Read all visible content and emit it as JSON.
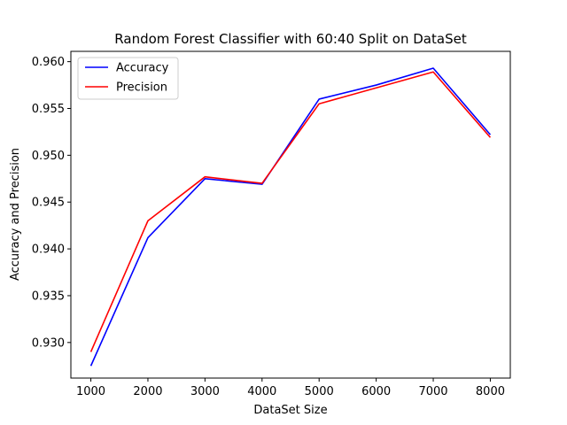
{
  "chart_data": {
    "type": "line",
    "title": "Random Forest Classifier with 60:40 Split on DataSet",
    "xlabel": "DataSet Size",
    "ylabel": "Accuracy and Precision",
    "x": [
      1000,
      2000,
      3000,
      4000,
      5000,
      6000,
      7000,
      8000
    ],
    "xticks": [
      1000,
      2000,
      3000,
      4000,
      5000,
      6000,
      7000,
      8000
    ],
    "yticks": [
      0.93,
      0.935,
      0.94,
      0.945,
      0.95,
      0.955,
      0.96
    ],
    "xtick_labels": [
      "1000",
      "2000",
      "3000",
      "4000",
      "5000",
      "6000",
      "7000",
      "8000"
    ],
    "ytick_labels": [
      "0.930",
      "0.935",
      "0.940",
      "0.945",
      "0.950",
      "0.955",
      "0.960"
    ],
    "xlim": [
      650,
      8350
    ],
    "ylim": [
      0.9262,
      0.9611
    ],
    "grid": false,
    "legend_position": "top-left",
    "series": [
      {
        "name": "Accuracy",
        "color": "#0000ff",
        "values": [
          0.9275,
          0.9412,
          0.9475,
          0.9469,
          0.956,
          0.9575,
          0.9593,
          0.9522
        ]
      },
      {
        "name": "Precision",
        "color": "#ff0000",
        "values": [
          0.929,
          0.943,
          0.9477,
          0.947,
          0.9555,
          0.9572,
          0.9589,
          0.9519
        ]
      }
    ]
  }
}
